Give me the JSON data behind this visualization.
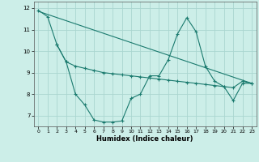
{
  "xlabel": "Humidex (Indice chaleur)",
  "background_color": "#cceee8",
  "grid_color": "#aad6d0",
  "line_color": "#1a7a6e",
  "xlim": [
    -0.5,
    23.5
  ],
  "ylim": [
    6.5,
    12.3
  ],
  "yticks": [
    7,
    8,
    9,
    10,
    11,
    12
  ],
  "xticks": [
    0,
    1,
    2,
    3,
    4,
    5,
    6,
    7,
    8,
    9,
    10,
    11,
    12,
    13,
    14,
    15,
    16,
    17,
    18,
    19,
    20,
    21,
    22,
    23
  ],
  "series1_x": [
    0,
    1,
    2,
    3,
    4,
    5,
    6,
    7,
    8,
    9,
    10,
    11,
    12,
    13,
    14,
    15,
    16,
    17,
    18,
    19,
    20,
    21,
    22,
    23
  ],
  "series1_y": [
    11.9,
    11.6,
    10.3,
    9.5,
    8.0,
    7.5,
    6.8,
    6.7,
    6.7,
    6.75,
    7.8,
    8.0,
    8.85,
    8.85,
    9.6,
    10.8,
    11.55,
    10.9,
    9.3,
    8.6,
    8.35,
    7.7,
    8.5,
    8.5
  ],
  "series2_x": [
    0,
    23
  ],
  "series2_y": [
    11.85,
    8.5
  ],
  "series3_x": [
    2,
    3,
    4,
    5,
    6,
    7,
    8,
    9,
    10,
    11,
    12,
    13,
    14,
    15,
    16,
    17,
    18,
    19,
    20,
    21,
    22,
    23
  ],
  "series3_y": [
    10.3,
    9.5,
    9.3,
    9.2,
    9.1,
    9.0,
    8.95,
    8.9,
    8.85,
    8.8,
    8.75,
    8.7,
    8.65,
    8.6,
    8.55,
    8.5,
    8.45,
    8.4,
    8.35,
    8.3,
    8.6,
    8.5
  ],
  "figsize": [
    3.2,
    2.0
  ],
  "dpi": 100
}
